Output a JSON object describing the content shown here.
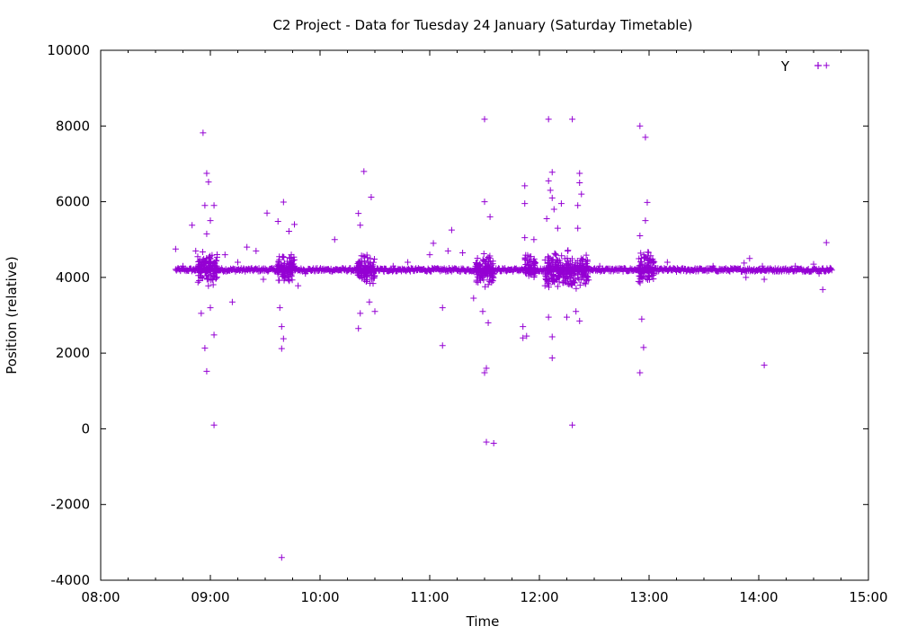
{
  "chart_data": {
    "type": "scatter",
    "title": "C2 Project - Data for Tuesday 24 January (Saturday Timetable)",
    "xlabel": "Time",
    "ylabel": "Position (relative)",
    "xlim": [
      "08:00",
      "15:00"
    ],
    "ylim": [
      -4000,
      10000
    ],
    "x_ticks": [
      "08:00",
      "09:00",
      "10:00",
      "11:00",
      "12:00",
      "13:00",
      "14:00",
      "15:00"
    ],
    "y_ticks": [
      -4000,
      -2000,
      0,
      2000,
      4000,
      6000,
      8000,
      10000
    ],
    "grid": false,
    "legend_position": "top-right",
    "marker": "+",
    "color": "#9400d3",
    "series": [
      {
        "name": "Y",
        "baseline": {
          "y": 4200,
          "x_start": "08:41",
          "x_end": "14:40"
        },
        "clusters": [
          {
            "x_start": "08:53",
            "x_end": "09:04",
            "y_low": 3700,
            "y_high": 4800
          },
          {
            "x_start": "09:36",
            "x_end": "09:46",
            "y_low": 3800,
            "y_high": 4700
          },
          {
            "x_start": "10:20",
            "x_end": "10:30",
            "y_low": 3700,
            "y_high": 4700
          },
          {
            "x_start": "11:25",
            "x_end": "11:35",
            "y_low": 3600,
            "y_high": 4700
          },
          {
            "x_start": "11:52",
            "x_end": "11:58",
            "y_low": 3800,
            "y_high": 4700
          },
          {
            "x_start": "12:03",
            "x_end": "12:27",
            "y_low": 3500,
            "y_high": 4800
          },
          {
            "x_start": "12:54",
            "x_end": "13:03",
            "y_low": 3700,
            "y_high": 4800
          }
        ],
        "points": [
          {
            "x": "08:41",
            "y": 4750
          },
          {
            "x": "08:45",
            "y": 4300
          },
          {
            "x": "08:50",
            "y": 5380
          },
          {
            "x": "08:52",
            "y": 4700
          },
          {
            "x": "08:56",
            "y": 7820
          },
          {
            "x": "08:58",
            "y": 6750
          },
          {
            "x": "08:59",
            "y": 6520
          },
          {
            "x": "08:57",
            "y": 5900
          },
          {
            "x": "09:00",
            "y": 5500
          },
          {
            "x": "08:58",
            "y": 5150
          },
          {
            "x": "08:55",
            "y": 3050
          },
          {
            "x": "08:57",
            "y": 2130
          },
          {
            "x": "08:58",
            "y": 1520
          },
          {
            "x": "09:02",
            "y": 2480
          },
          {
            "x": "09:02",
            "y": 100
          },
          {
            "x": "09:00",
            "y": 3200
          },
          {
            "x": "09:02",
            "y": 5900
          },
          {
            "x": "09:08",
            "y": 4600
          },
          {
            "x": "09:12",
            "y": 3350
          },
          {
            "x": "09:15",
            "y": 4400
          },
          {
            "x": "09:20",
            "y": 4800
          },
          {
            "x": "09:25",
            "y": 4700
          },
          {
            "x": "09:29",
            "y": 3950
          },
          {
            "x": "09:31",
            "y": 5700
          },
          {
            "x": "09:37",
            "y": 5480
          },
          {
            "x": "09:40",
            "y": 5990
          },
          {
            "x": "09:38",
            "y": 3200
          },
          {
            "x": "09:39",
            "y": 2700
          },
          {
            "x": "09:40",
            "y": 2380
          },
          {
            "x": "09:39",
            "y": 2120
          },
          {
            "x": "09:39",
            "y": -3400
          },
          {
            "x": "09:43",
            "y": 5220
          },
          {
            "x": "09:46",
            "y": 5400
          },
          {
            "x": "09:48",
            "y": 3780
          },
          {
            "x": "09:52",
            "y": 4100
          },
          {
            "x": "10:08",
            "y": 5000
          },
          {
            "x": "10:21",
            "y": 5690
          },
          {
            "x": "10:22",
            "y": 5380
          },
          {
            "x": "10:24",
            "y": 6800
          },
          {
            "x": "10:28",
            "y": 6120
          },
          {
            "x": "10:21",
            "y": 2650
          },
          {
            "x": "10:22",
            "y": 3050
          },
          {
            "x": "10:27",
            "y": 3350
          },
          {
            "x": "10:30",
            "y": 3100
          },
          {
            "x": "10:35",
            "y": 4150
          },
          {
            "x": "10:40",
            "y": 4300
          },
          {
            "x": "10:48",
            "y": 4400
          },
          {
            "x": "11:00",
            "y": 4600
          },
          {
            "x": "11:02",
            "y": 4900
          },
          {
            "x": "11:07",
            "y": 3200
          },
          {
            "x": "11:07",
            "y": 2200
          },
          {
            "x": "11:10",
            "y": 4700
          },
          {
            "x": "11:12",
            "y": 5250
          },
          {
            "x": "11:18",
            "y": 4650
          },
          {
            "x": "11:24",
            "y": 3450
          },
          {
            "x": "11:30",
            "y": 8180
          },
          {
            "x": "11:30",
            "y": 6000
          },
          {
            "x": "11:33",
            "y": 5600
          },
          {
            "x": "11:30",
            "y": 1480
          },
          {
            "x": "11:31",
            "y": 1600
          },
          {
            "x": "11:31",
            "y": -350
          },
          {
            "x": "11:35",
            "y": -380
          },
          {
            "x": "11:32",
            "y": 2800
          },
          {
            "x": "11:29",
            "y": 3100
          },
          {
            "x": "11:52",
            "y": 6420
          },
          {
            "x": "11:52",
            "y": 5950
          },
          {
            "x": "11:52",
            "y": 5050
          },
          {
            "x": "11:51",
            "y": 2700
          },
          {
            "x": "11:51",
            "y": 2400
          },
          {
            "x": "11:53",
            "y": 2450
          },
          {
            "x": "11:57",
            "y": 5000
          },
          {
            "x": "12:05",
            "y": 8180
          },
          {
            "x": "12:05",
            "y": 6550
          },
          {
            "x": "12:06",
            "y": 6300
          },
          {
            "x": "12:07",
            "y": 6780
          },
          {
            "x": "12:07",
            "y": 6100
          },
          {
            "x": "12:04",
            "y": 5550
          },
          {
            "x": "12:08",
            "y": 5800
          },
          {
            "x": "12:10",
            "y": 5300
          },
          {
            "x": "12:12",
            "y": 5950
          },
          {
            "x": "12:07",
            "y": 1870
          },
          {
            "x": "12:07",
            "y": 2430
          },
          {
            "x": "12:05",
            "y": 2950
          },
          {
            "x": "12:15",
            "y": 2950
          },
          {
            "x": "12:18",
            "y": 8180
          },
          {
            "x": "12:18",
            "y": 100
          },
          {
            "x": "12:21",
            "y": 5300
          },
          {
            "x": "12:22",
            "y": 6750
          },
          {
            "x": "12:22",
            "y": 6500
          },
          {
            "x": "12:23",
            "y": 6200
          },
          {
            "x": "12:21",
            "y": 5900
          },
          {
            "x": "12:20",
            "y": 3100
          },
          {
            "x": "12:22",
            "y": 2850
          },
          {
            "x": "12:33",
            "y": 4300
          },
          {
            "x": "12:55",
            "y": 8000
          },
          {
            "x": "12:58",
            "y": 7700
          },
          {
            "x": "12:59",
            "y": 5980
          },
          {
            "x": "12:58",
            "y": 5500
          },
          {
            "x": "12:55",
            "y": 5100
          },
          {
            "x": "12:56",
            "y": 2900
          },
          {
            "x": "12:57",
            "y": 2150
          },
          {
            "x": "12:55",
            "y": 1480
          },
          {
            "x": "13:10",
            "y": 4400
          },
          {
            "x": "13:15",
            "y": 4150
          },
          {
            "x": "13:35",
            "y": 4300
          },
          {
            "x": "13:52",
            "y": 4380
          },
          {
            "x": "13:53",
            "y": 4000
          },
          {
            "x": "13:55",
            "y": 4500
          },
          {
            "x": "14:02",
            "y": 4300
          },
          {
            "x": "14:03",
            "y": 3950
          },
          {
            "x": "14:03",
            "y": 1680
          },
          {
            "x": "14:10",
            "y": 4200
          },
          {
            "x": "14:20",
            "y": 4300
          },
          {
            "x": "14:27",
            "y": 4200
          },
          {
            "x": "14:30",
            "y": 4350
          },
          {
            "x": "14:33",
            "y": 4100
          },
          {
            "x": "14:35",
            "y": 3680
          },
          {
            "x": "14:37",
            "y": 4920
          },
          {
            "x": "14:37",
            "y": 9600
          },
          {
            "x": "14:39",
            "y": 4250
          }
        ]
      }
    ]
  }
}
